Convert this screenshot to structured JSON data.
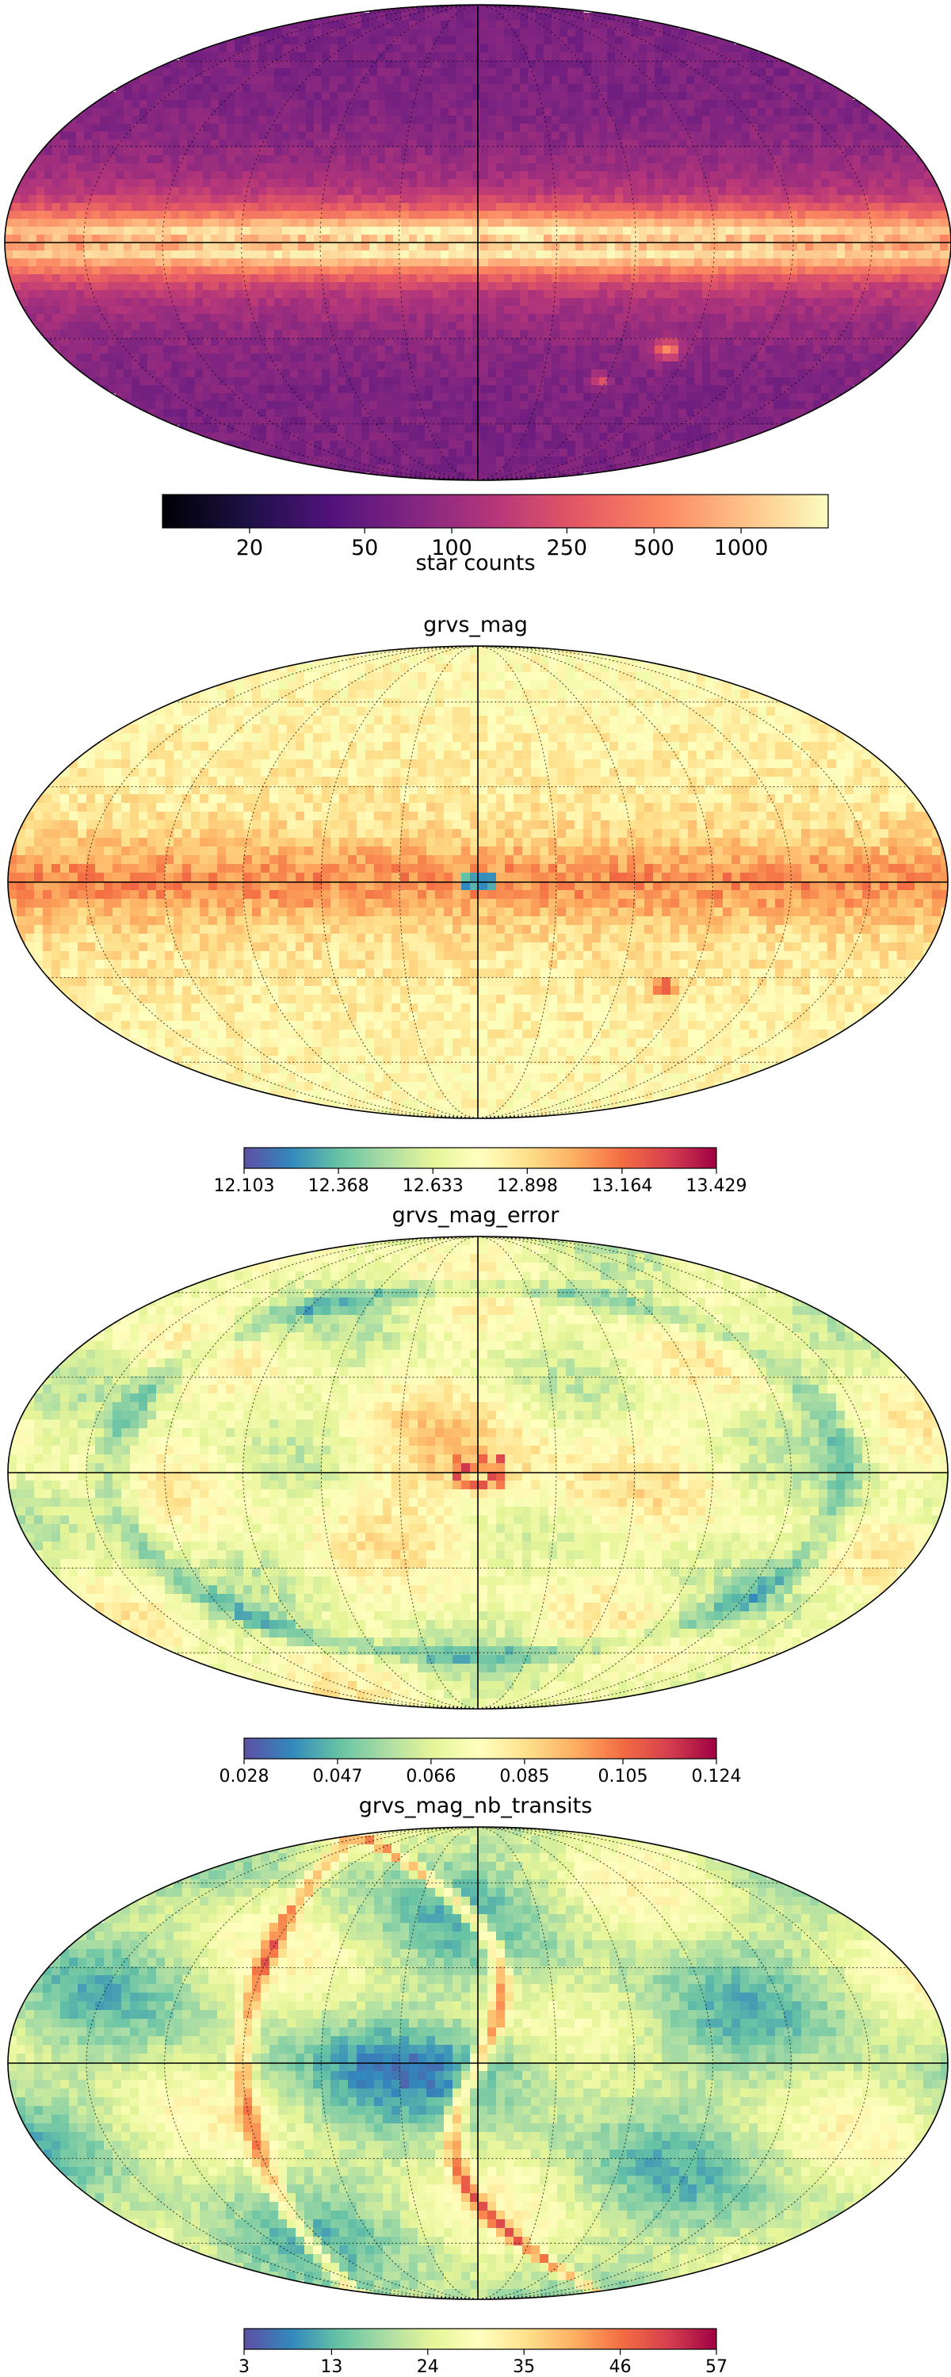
{
  "chart_data": [
    {
      "type": "heatmap",
      "projection": "mollweide",
      "title": "",
      "colormap": "magma",
      "colorbar": {
        "scale": "log",
        "label": "star counts",
        "range": [
          10,
          2000
        ],
        "ticks": [
          20,
          50,
          100,
          250,
          500,
          1000
        ],
        "tick_labels": [
          "20",
          "50",
          "100",
          "250",
          "500",
          "1000"
        ]
      },
      "graticule": true
    },
    {
      "type": "heatmap",
      "projection": "mollweide",
      "title": "grvs_mag",
      "colormap": "Spectral_r",
      "colorbar": {
        "scale": "linear",
        "label": "",
        "range": [
          12.103,
          13.429
        ],
        "ticks": [
          12.103,
          12.368,
          12.633,
          12.898,
          13.164,
          13.429
        ],
        "tick_labels": [
          "12.103",
          "12.368",
          "12.633",
          "12.898",
          "13.164",
          "13.429"
        ]
      },
      "graticule": true
    },
    {
      "type": "heatmap",
      "projection": "mollweide",
      "title": "grvs_mag_error",
      "colormap": "Spectral_r",
      "colorbar": {
        "scale": "linear",
        "label": "",
        "range": [
          0.028,
          0.124
        ],
        "ticks": [
          0.028,
          0.047,
          0.066,
          0.085,
          0.105,
          0.124
        ],
        "tick_labels": [
          "0.028",
          "0.047",
          "0.066",
          "0.085",
          "0.105",
          "0.124"
        ]
      },
      "graticule": true
    },
    {
      "type": "heatmap",
      "projection": "mollweide",
      "title": "grvs_mag_nb_transits",
      "colormap": "Spectral_r",
      "colorbar": {
        "scale": "linear",
        "label": "",
        "range": [
          3,
          57
        ],
        "ticks": [
          3,
          13,
          24,
          35,
          46,
          57
        ],
        "tick_labels": [
          "3",
          "13",
          "24",
          "35",
          "46",
          "57"
        ]
      },
      "graticule": true
    }
  ],
  "colors": {
    "magma": [
      "#000004",
      "#1c1044",
      "#4f127b",
      "#812581",
      "#b5367a",
      "#e55964",
      "#fb8761",
      "#fec287",
      "#fcfdbf"
    ],
    "spectral_r": [
      "#5e4fa2",
      "#3288bd",
      "#66c2a5",
      "#abdda4",
      "#e6f598",
      "#ffffbf",
      "#fee08b",
      "#fdae61",
      "#f46d43",
      "#d53e4f",
      "#9e0142"
    ]
  }
}
